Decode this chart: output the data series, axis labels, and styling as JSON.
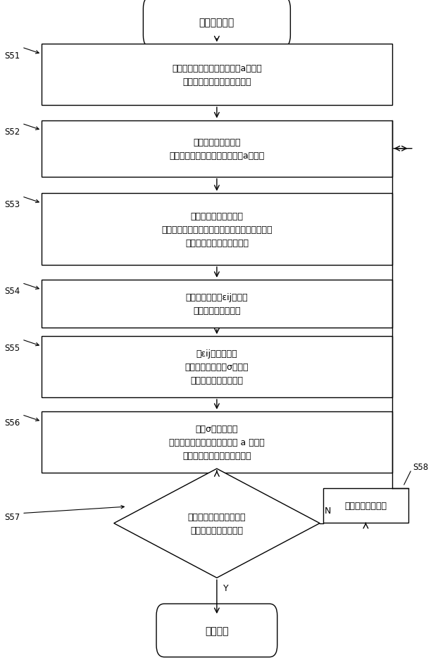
{
  "title": "変形ステップ",
  "return_label": "リターン",
  "s51_line1": "ゴムモデルの各粒子の加速度aを計算",
  "s51_line2": "（第１加速度計算ステップ）",
  "s52_line1": "並進速度に基づいた",
  "s52_line2": "接触部モデルの各粒子の加速度aを計算",
  "s53_line1": "ゴムモデルの各粒子と",
  "s53_line2": "接触部モデルの各粒子との間に接触バネを定義",
  "s53_line3": "（接触バネ設定ステップ）",
  "s54_line1": "ゴムモデルの歪εijを計算",
  "s54_line2": "（歪計算ステップ）",
  "s55_line1": "歪εijに基づいて",
  "s55_line2": "ゴムモデルの応力σを計算",
  "s55_line3": "（応力計算ステップ）",
  "s56_line1": "応力σに基づいて",
  "s56_line2": "ゴムモデルの各粒子の加速度 a を計算",
  "s56_line3": "（第２加速度計算ステップ）",
  "s57_line1": "終了時間が経過したか？",
  "s57_line2": "（終了判断ステップ）",
  "s58_label": "単位時間を進める",
  "label_s51": "S51",
  "label_s52": "S52",
  "label_s53": "S53",
  "label_s54": "S54",
  "label_s55": "S55",
  "label_s56": "S56",
  "label_s57": "S57",
  "label_s58": "S58",
  "label_N": "N",
  "label_Y": "Y",
  "bg_color": "#ffffff",
  "box_color": "#ffffff",
  "box_edge": "#000000",
  "text_color": "#000000"
}
